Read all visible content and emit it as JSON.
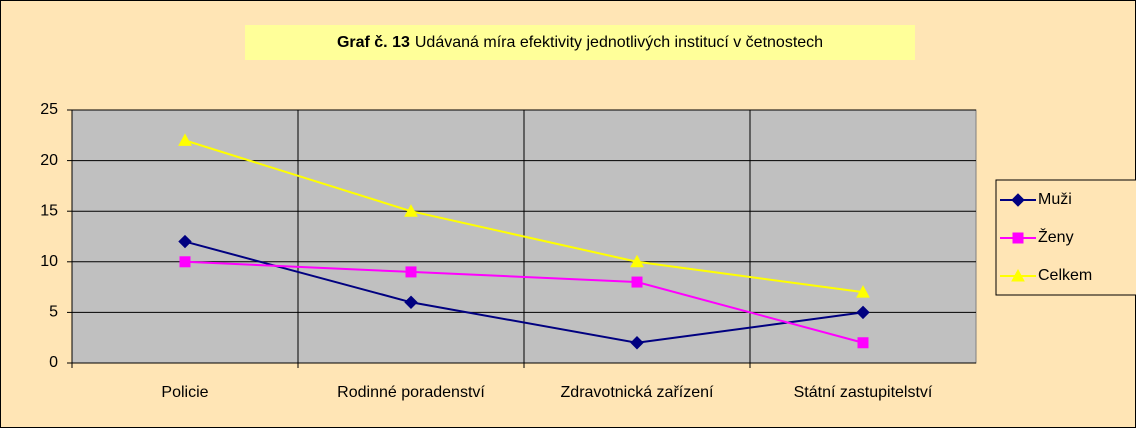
{
  "chart_data": {
    "type": "line",
    "title_bold": "Graf č. 13",
    "title": "Udávaná míra efektivity jednotlivých institucí v četnostech",
    "categories": [
      "Policie",
      "Rodinné poradenství",
      "Zdravotnická zařízení",
      "Státní zastupitelství"
    ],
    "series": [
      {
        "name": "Muži",
        "color": "#000080",
        "marker": "diamond",
        "values": [
          12,
          6,
          2,
          5
        ]
      },
      {
        "name": "Ženy",
        "color": "#FF00FF",
        "marker": "square",
        "values": [
          10,
          9,
          8,
          2
        ]
      },
      {
        "name": "Celkem",
        "color": "#FFFF00",
        "marker": "triangle",
        "values": [
          22,
          15,
          10,
          7
        ]
      }
    ],
    "ylim": [
      0,
      25
    ],
    "yticks": [
      0,
      5,
      10,
      15,
      20,
      25
    ],
    "grid": true,
    "legend": "right"
  }
}
